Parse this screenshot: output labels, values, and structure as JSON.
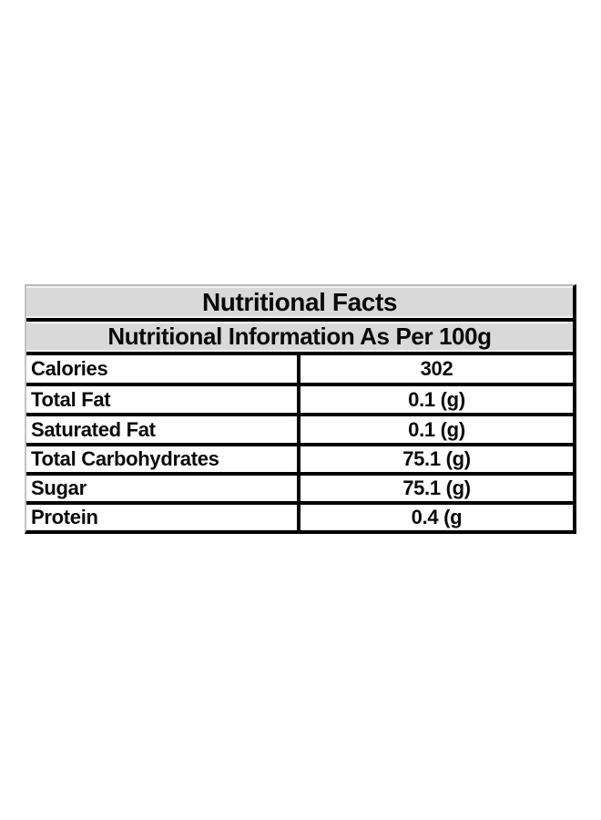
{
  "table": {
    "title": "Nutritional Facts",
    "subtitle": "Nutritional Information As Per 100g",
    "rows": [
      {
        "label": "Calories",
        "value": "302"
      },
      {
        "label": "Total Fat",
        "value": "0.1 (g)"
      },
      {
        "label": "Saturated Fat",
        "value": "0.1 (g)"
      },
      {
        "label": "Total Carbohydrates",
        "value": "75.1 (g)"
      },
      {
        "label": "Sugar",
        "value": "75.1 (g)"
      },
      {
        "label": "Protein",
        "value": "0.4 (g"
      }
    ],
    "colors": {
      "header_bg": "#d9d9d9",
      "border_dark": "#000000",
      "border_light": "#bdbdbd",
      "text": "#0a0a0a",
      "page_bg": "#ffffff"
    }
  }
}
